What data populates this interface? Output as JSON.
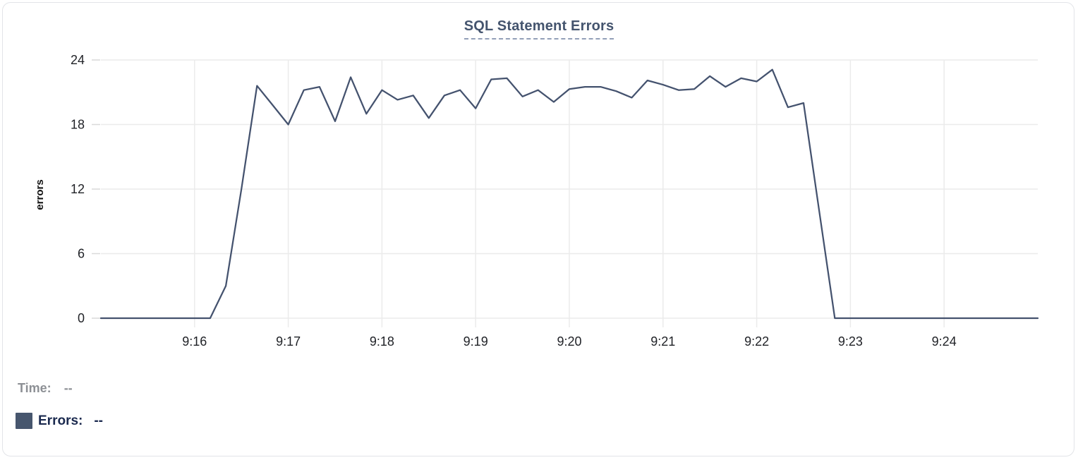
{
  "header": {
    "title": "SQL Statement Errors"
  },
  "footer": {
    "time_label": "Time:",
    "time_value": "--",
    "errors_label": "Errors:",
    "errors_value": "--"
  },
  "colors": {
    "series_line": "#44526e",
    "series_swatch": "#47566e",
    "title": "#44546e",
    "gridline": "#ebebeb",
    "tick_stub": "#d9d9d9"
  },
  "chart_data": {
    "type": "line",
    "title": "SQL Statement Errors",
    "xlabel": "",
    "ylabel": "errors",
    "series_name": "Errors",
    "grid": true,
    "legend_position": "bottom-left",
    "xlim": [
      "9:15:00",
      "9:25:00"
    ],
    "ylim": [
      0,
      24
    ],
    "yticks": [
      0,
      6,
      12,
      18,
      24
    ],
    "xticks": [
      "9:16",
      "9:17",
      "9:18",
      "9:19",
      "9:20",
      "9:21",
      "9:22",
      "9:23",
      "9:24"
    ],
    "x": [
      "9:15:00",
      "9:15:10",
      "9:15:20",
      "9:15:30",
      "9:15:40",
      "9:15:50",
      "9:16:00",
      "9:16:10",
      "9:16:20",
      "9:16:30",
      "9:16:40",
      "9:16:50",
      "9:17:00",
      "9:17:10",
      "9:17:20",
      "9:17:30",
      "9:17:40",
      "9:17:50",
      "9:18:00",
      "9:18:10",
      "9:18:20",
      "9:18:30",
      "9:18:40",
      "9:18:50",
      "9:19:00",
      "9:19:10",
      "9:19:20",
      "9:19:30",
      "9:19:40",
      "9:19:50",
      "9:20:00",
      "9:20:10",
      "9:20:20",
      "9:20:30",
      "9:20:40",
      "9:20:50",
      "9:21:00",
      "9:21:10",
      "9:21:20",
      "9:21:30",
      "9:21:40",
      "9:21:50",
      "9:22:00",
      "9:22:10",
      "9:22:20",
      "9:22:30",
      "9:22:40",
      "9:22:50",
      "9:23:00",
      "9:23:10",
      "9:23:20",
      "9:23:30",
      "9:23:40",
      "9:23:50",
      "9:24:00",
      "9:24:10",
      "9:24:20",
      "9:24:30",
      "9:24:40",
      "9:24:50",
      "9:25:00"
    ],
    "values": [
      0,
      0,
      0,
      0,
      0,
      0,
      0,
      0,
      3,
      12,
      21.6,
      19.8,
      18,
      21.2,
      21.5,
      18.3,
      22.4,
      19,
      21.2,
      20.3,
      20.7,
      18.6,
      20.7,
      21.2,
      19.5,
      22.2,
      22.3,
      20.6,
      21.2,
      20.1,
      21.3,
      21.5,
      21.5,
      21.1,
      20.5,
      22.1,
      21.7,
      21.2,
      21.3,
      22.5,
      21.5,
      22.3,
      22,
      23.1,
      19.6,
      20,
      10,
      0,
      0,
      0,
      0,
      0,
      0,
      0,
      0,
      0,
      0,
      0,
      0,
      0,
      0
    ]
  }
}
